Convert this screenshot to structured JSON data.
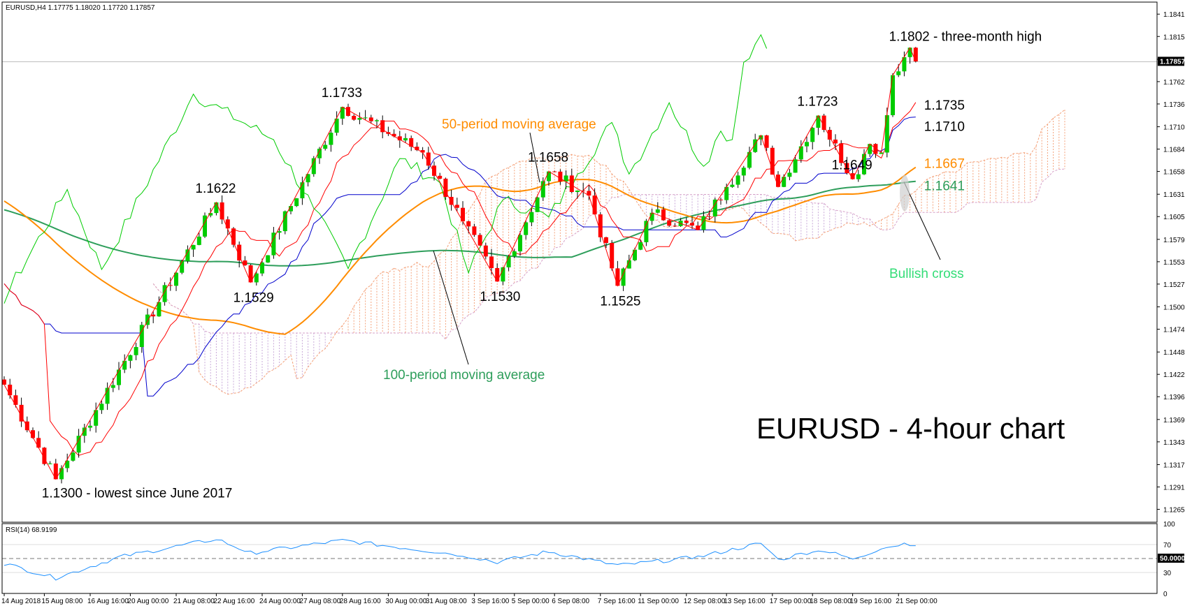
{
  "header": {
    "symbol_line": "EURUSD,H4  1.17775 1.18020 1.17720 1.17857"
  },
  "colors": {
    "bull": "#00cc00",
    "bear": "#ff0000",
    "tenkan": "#ff0000",
    "kijun": "#0000cc",
    "chikou": "#00cc00",
    "ma50": "#ff8c00",
    "ma100": "#2e9e5b",
    "cloud": "#f4a27a",
    "rsi": "#1e90ff",
    "text": "#000000"
  },
  "chart_data": [
    {
      "type": "candlestick",
      "title": "EURUSD - 4-hour chart",
      "ylim": [
        1.125,
        1.1855
      ],
      "y_ticks": [
        "1.18410",
        "1.18150",
        "1.17885",
        "1.17625",
        "1.17365",
        "1.17100",
        "1.16840",
        "1.16580",
        "1.16315",
        "1.16055",
        "1.15790",
        "1.15530",
        "1.15270",
        "1.15005",
        "1.14745",
        "1.14480",
        "1.14220",
        "1.13960",
        "1.13695",
        "1.13435",
        "1.13170",
        "1.12910",
        "1.12650"
      ],
      "x_ticks": [
        "14 Aug 2018",
        "15 Aug 08:00",
        "16 Aug 16:00",
        "20 Aug 00:00",
        "21 Aug 08:00",
        "22 Aug 16:00",
        "24 Aug 00:00",
        "27 Aug 08:00",
        "28 Aug 16:00",
        "30 Aug 00:00",
        "31 Aug 08:00",
        "3 Sep 16:00",
        "5 Sep 00:00",
        "6 Sep 08:00",
        "7 Sep 16:00",
        "11 Sep 00:00",
        "12 Sep 08:00",
        "13 Sep 16:00",
        "17 Sep 00:00",
        "18 Sep 08:00",
        "19 Sep 16:00",
        "21 Sep 00:00"
      ],
      "current_price": "1.17857",
      "anchors": [
        {
          "bar": 0,
          "price": 1.141
        },
        {
          "bar": 9,
          "price": 1.13
        },
        {
          "bar": 37,
          "price": 1.1622
        },
        {
          "bar": 43,
          "price": 1.1529
        },
        {
          "bar": 59,
          "price": 1.1733
        },
        {
          "bar": 73,
          "price": 1.168
        },
        {
          "bar": 80,
          "price": 1.16
        },
        {
          "bar": 86,
          "price": 1.153
        },
        {
          "bar": 95,
          "price": 1.1658
        },
        {
          "bar": 102,
          "price": 1.163
        },
        {
          "bar": 107,
          "price": 1.1525
        },
        {
          "bar": 113,
          "price": 1.161
        },
        {
          "bar": 121,
          "price": 1.159
        },
        {
          "bar": 126,
          "price": 1.164
        },
        {
          "bar": 132,
          "price": 1.17
        },
        {
          "bar": 135,
          "price": 1.164
        },
        {
          "bar": 142,
          "price": 1.1723
        },
        {
          "bar": 148,
          "price": 1.1649
        },
        {
          "bar": 151,
          "price": 1.169
        },
        {
          "bar": 153,
          "price": 1.168
        },
        {
          "bar": 155,
          "price": 1.177
        },
        {
          "bar": 158,
          "price": 1.1802
        },
        {
          "bar": 159,
          "price": 1.1786
        }
      ],
      "annotations": [
        {
          "text": "1.1802 - three-month high",
          "bar": 158,
          "price": 1.1802
        },
        {
          "text": "1.1733",
          "bar": 59,
          "price": 1.1733
        },
        {
          "text": "1.1723",
          "bar": 142,
          "price": 1.1723
        },
        {
          "text": "1.1735",
          "bar": 159,
          "price": 1.1735
        },
        {
          "text": "1.1710",
          "bar": 159,
          "price": 1.171
        },
        {
          "text": "1.1667",
          "bar": 159,
          "price": 1.1667
        },
        {
          "text": "1.1658",
          "bar": 95,
          "price": 1.1658
        },
        {
          "text": "1.1649",
          "bar": 148,
          "price": 1.1649
        },
        {
          "text": "1.1641",
          "bar": 159,
          "price": 1.1641
        },
        {
          "text": "1.1622",
          "bar": 37,
          "price": 1.1622
        },
        {
          "text": "1.1529",
          "bar": 43,
          "price": 1.1529
        },
        {
          "text": "1.1530",
          "bar": 86,
          "price": 1.153
        },
        {
          "text": "1.1525",
          "bar": 107,
          "price": 1.1525
        },
        {
          "text": "1.1300 - lowest since June 2017",
          "bar": 9,
          "price": 1.13
        }
      ],
      "labels": {
        "ma50": "50-period moving average",
        "ma100": "100-period moving average",
        "cross": "Bullish cross"
      }
    },
    {
      "type": "line",
      "title": "RSI(14) 68.9199",
      "ylim": [
        0,
        100
      ],
      "y_ticks": [
        "100",
        "70",
        "50.0000",
        "30",
        "0"
      ],
      "level": 50,
      "anchors": [
        {
          "bar": 0,
          "value": 43
        },
        {
          "bar": 9,
          "value": 22
        },
        {
          "bar": 20,
          "value": 52
        },
        {
          "bar": 37,
          "value": 78
        },
        {
          "bar": 43,
          "value": 58
        },
        {
          "bar": 59,
          "value": 76
        },
        {
          "bar": 80,
          "value": 55
        },
        {
          "bar": 86,
          "value": 45
        },
        {
          "bar": 95,
          "value": 60
        },
        {
          "bar": 107,
          "value": 40
        },
        {
          "bar": 121,
          "value": 52
        },
        {
          "bar": 132,
          "value": 72
        },
        {
          "bar": 135,
          "value": 48
        },
        {
          "bar": 142,
          "value": 63
        },
        {
          "bar": 148,
          "value": 50
        },
        {
          "bar": 155,
          "value": 70
        },
        {
          "bar": 159,
          "value": 69
        }
      ]
    }
  ]
}
